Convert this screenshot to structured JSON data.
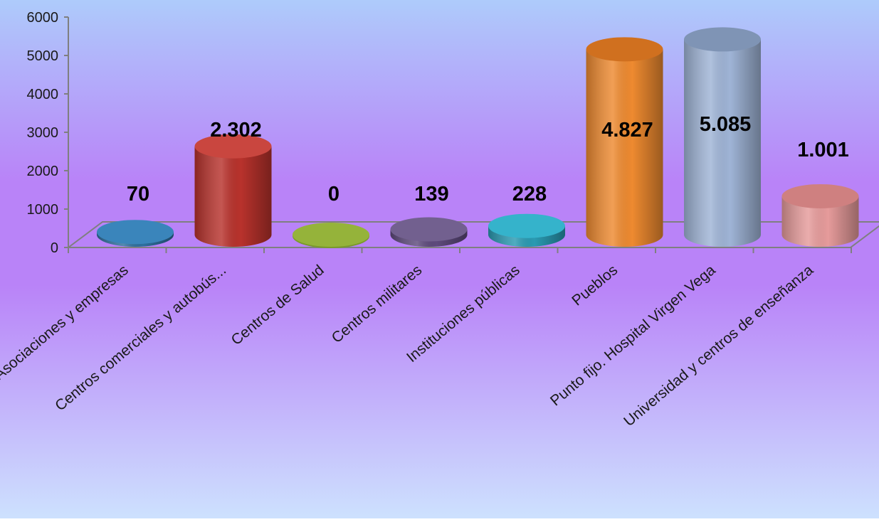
{
  "chart_data": {
    "type": "bar",
    "categories": [
      "Asociaciones y empresas",
      "Centros comerciales y autobús...",
      "Centros de Salud",
      "Centros militares",
      "Instituciones públicas",
      "Pueblos",
      "Punto fijo. Hospital Virgen Vega",
      "Universidad y centros de enseñanza"
    ],
    "values": [
      70,
      2302,
      0,
      139,
      228,
      4827,
      5085,
      1001
    ],
    "data_labels": [
      "70",
      "2.302",
      "0",
      "139",
      "228",
      "4.827",
      "5.085",
      "1.001"
    ],
    "y_ticks": [
      "0",
      "1000",
      "2000",
      "3000",
      "4000",
      "5000",
      "6000"
    ],
    "ylim": [
      0,
      6000
    ],
    "grid": false,
    "legend": "none",
    "bar_shape": "cylinder-3d",
    "colors": {
      "bars": [
        "#2e6f9e",
        "#b8322c",
        "#7a9a2c",
        "#5e4a7c",
        "#2a9ab2",
        "#ee8a30",
        "#9fb4d6",
        "#e69b9b"
      ],
      "bar_tops": [
        "#3a85bb",
        "#c9463f",
        "#95b33a",
        "#72608f",
        "#35b3cb",
        "#d0701f",
        "#7f94b5",
        "#cf8080"
      ],
      "axis": "#7f7f7f",
      "text": "#000000",
      "background_top": "#aecbfb",
      "background_mid": "#b983f8",
      "background_bottom": "#cde1fe"
    }
  }
}
